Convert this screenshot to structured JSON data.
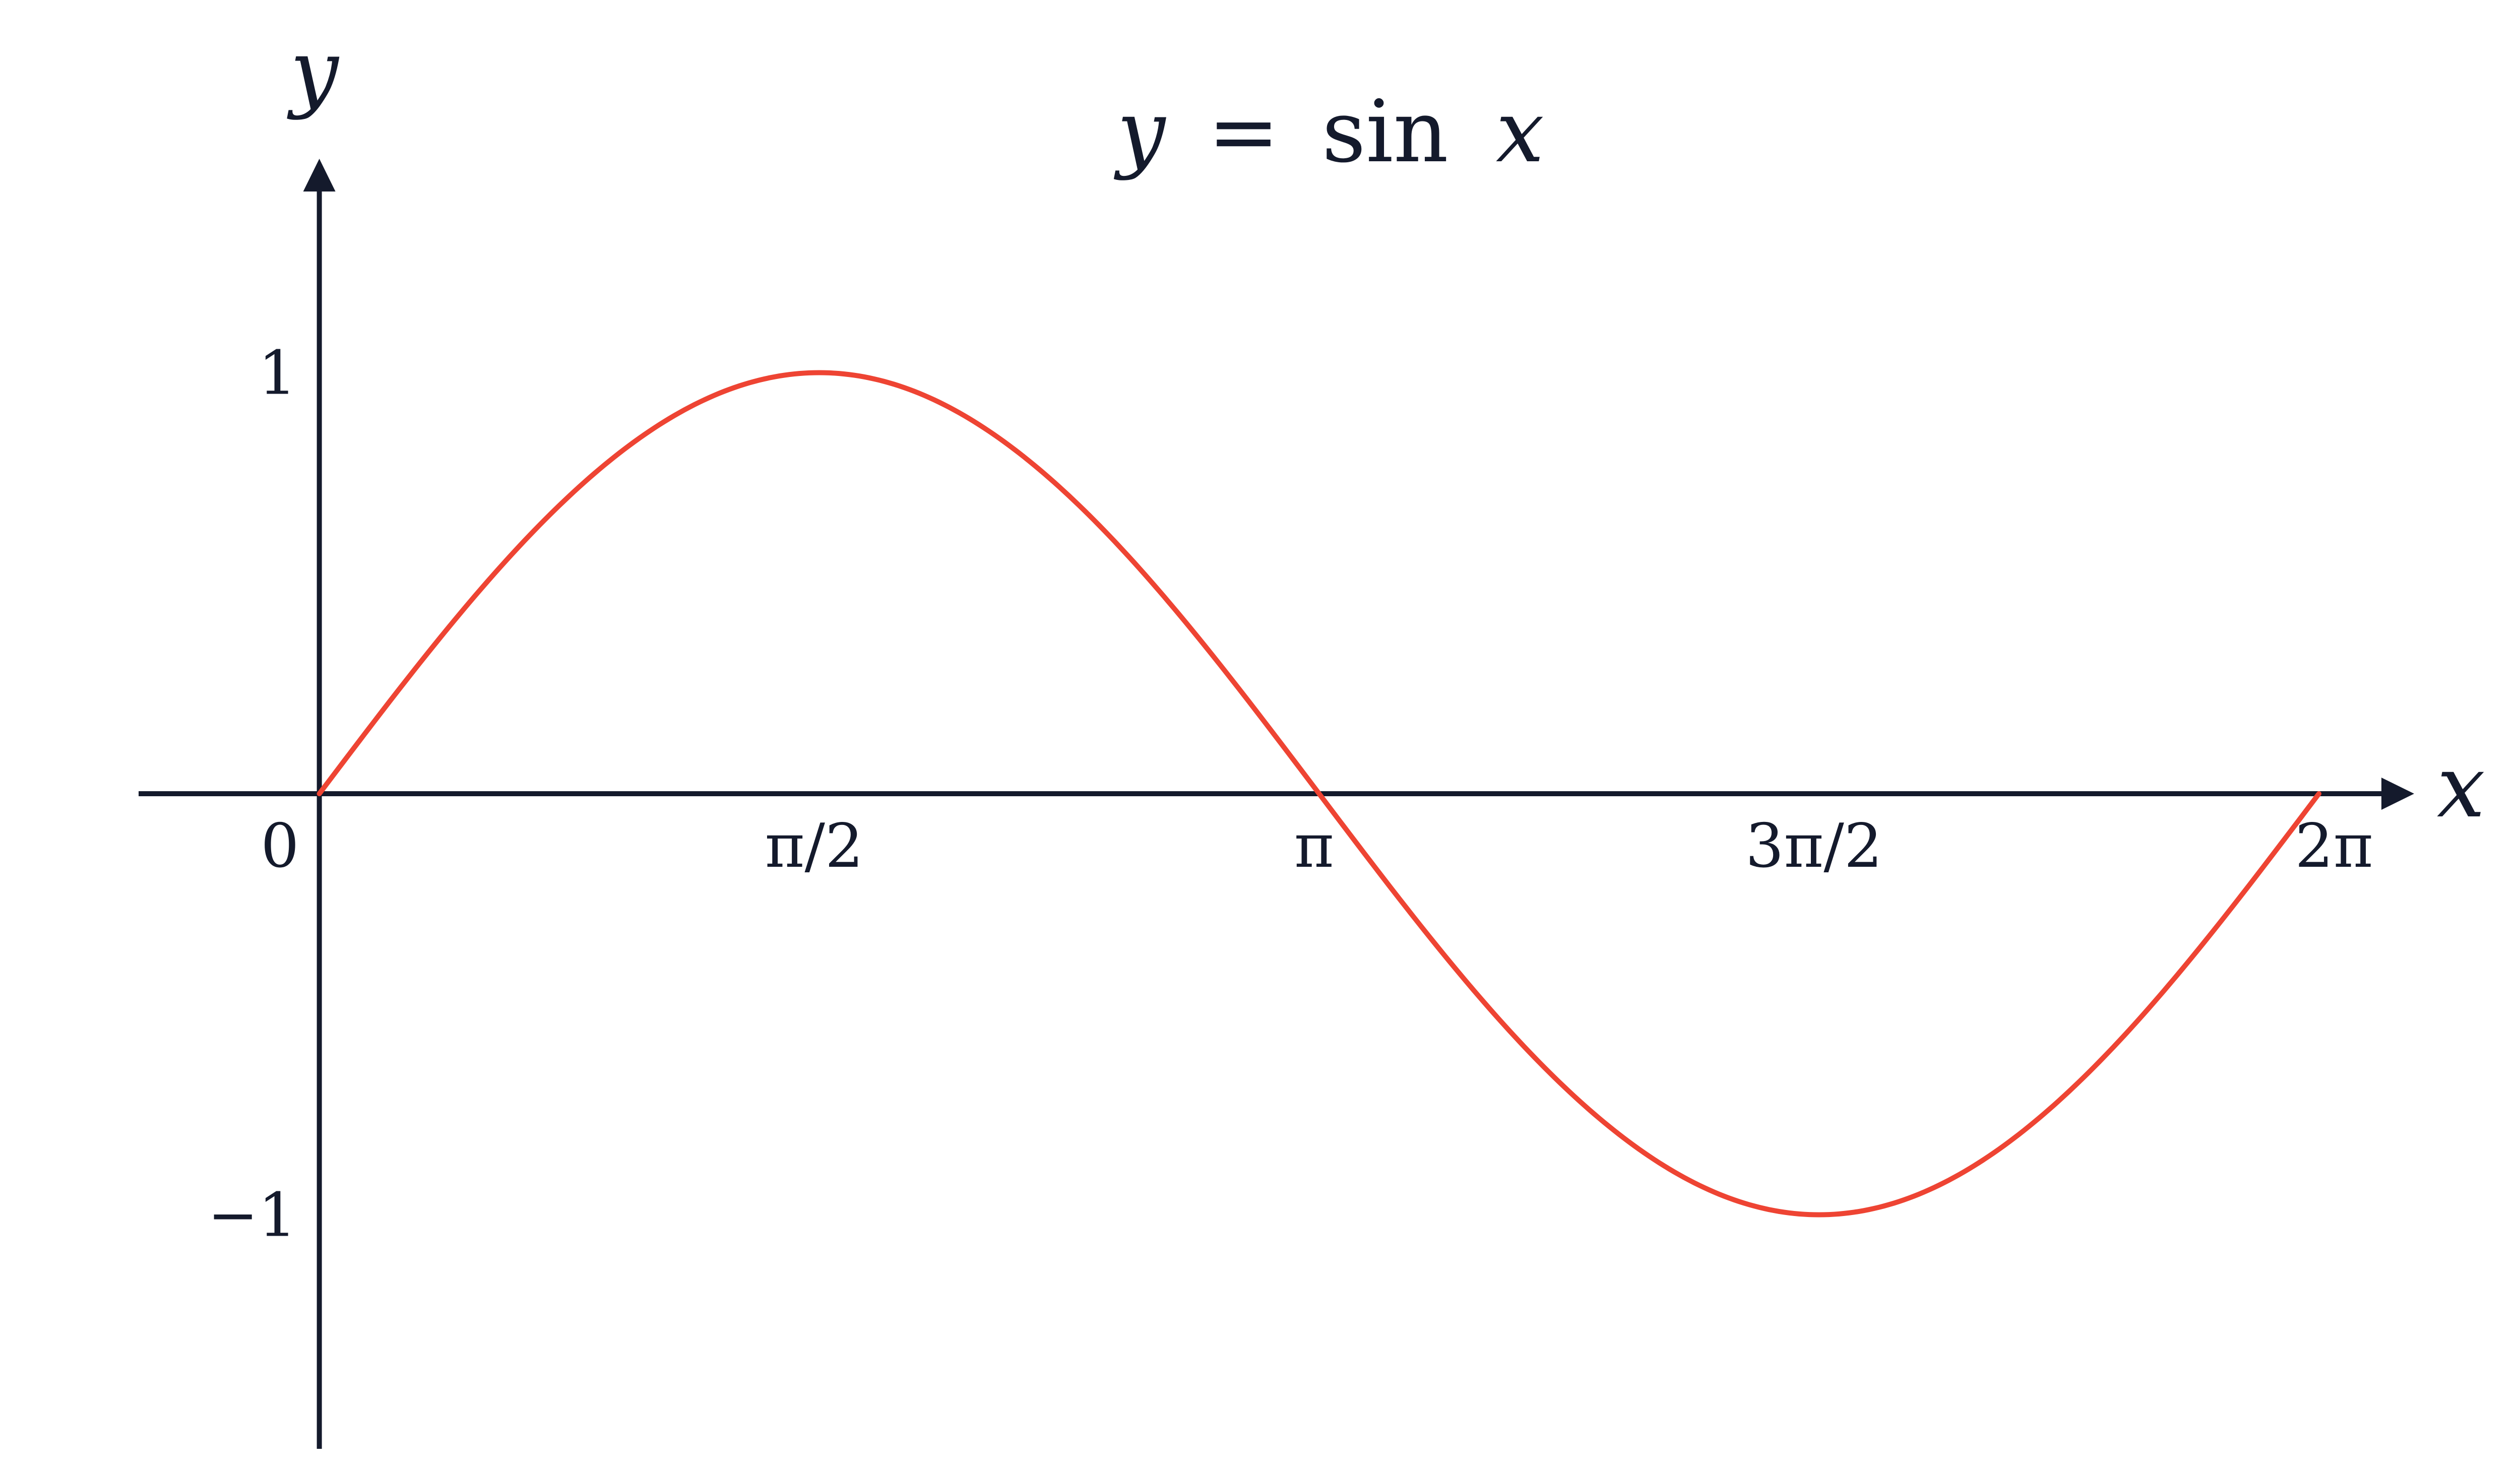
{
  "chart_data": {
    "type": "line",
    "title": {
      "lhs": "y",
      "equals": "=",
      "func": "sin",
      "arg": "x"
    },
    "xlabel": "x",
    "ylabel": "y",
    "x_ticks": [
      {
        "value": 0,
        "label": "0"
      },
      {
        "value": 1.5707963,
        "label": "π/2"
      },
      {
        "value": 3.1415927,
        "label": "π"
      },
      {
        "value": 4.712389,
        "label": "3π/2"
      },
      {
        "value": 6.2831853,
        "label": "2π"
      }
    ],
    "y_ticks": [
      {
        "value": 1,
        "label": "1"
      },
      {
        "value": -1,
        "label": "−1"
      }
    ],
    "xlim": [
      -0.56,
      6.63
    ],
    "ylim": [
      -1.55,
      1.55
    ],
    "series": [
      {
        "function": "sin",
        "x_range": [
          0,
          6.2831853
        ],
        "color": "#ee4433",
        "samples": [
          [
            0,
            0
          ],
          [
            0.7853982,
            0.7071
          ],
          [
            1.5707963,
            1
          ],
          [
            2.3561945,
            0.7071
          ],
          [
            3.1415927,
            0
          ],
          [
            3.9269908,
            -0.7071
          ],
          [
            4.712389,
            -1
          ],
          [
            5.4977871,
            -0.7071
          ],
          [
            6.2831853,
            0
          ]
        ]
      }
    ],
    "axis_color": "#141a2c",
    "grid": false,
    "legend": "none"
  }
}
